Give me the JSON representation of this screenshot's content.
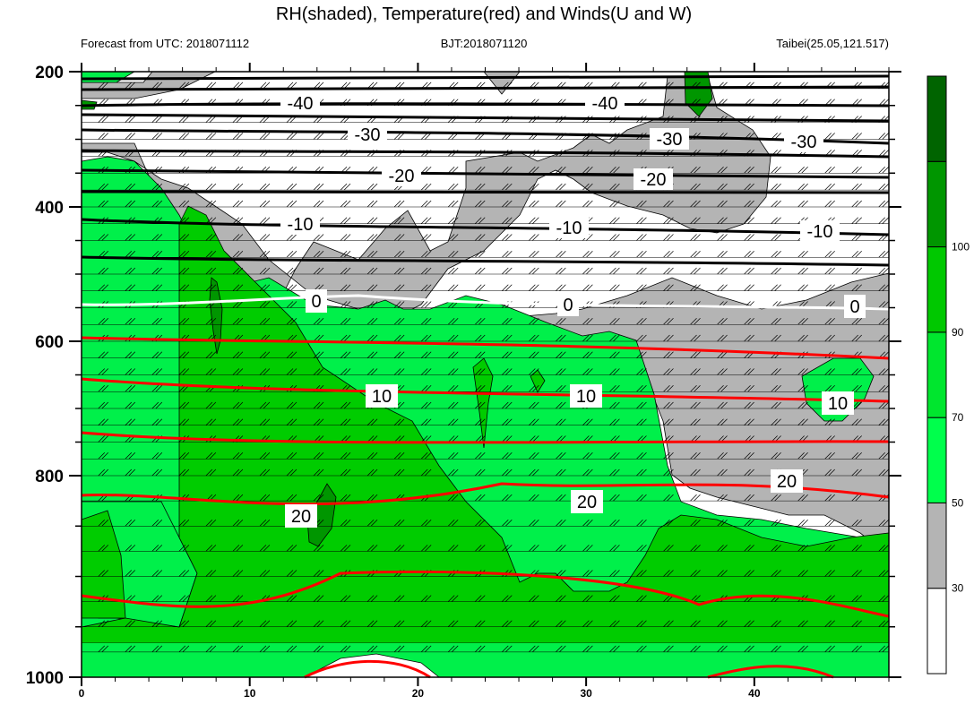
{
  "chart_data": {
    "type": "contour",
    "title": "RH(shaded), Temperature(red) and Winds(U and W)",
    "subtitle_left": "Forecast from UTC: 2018071112",
    "subtitle_center": "BJT:2018071120",
    "subtitle_right": "Taibei(25.05,121.517)",
    "x_ticks": [
      "0",
      "10",
      "20",
      "30",
      "40"
    ],
    "x_tick_values": [
      0,
      10,
      20,
      30,
      40
    ],
    "xlim": [
      0,
      48
    ],
    "y_ticks": [
      "200",
      "400",
      "600",
      "800",
      "1000"
    ],
    "y_tick_values": [
      200,
      400,
      600,
      800,
      1000
    ],
    "ylim": [
      200,
      1000
    ],
    "y_scale": "pressure (inverted, slightly compressed)",
    "colorbar": {
      "labels": [
        "30",
        "50",
        "70",
        "90",
        "100"
      ],
      "levels": [
        30,
        50,
        70,
        90,
        100
      ],
      "colors": [
        "#ffffff",
        "#b4b4b4",
        "#00ff4c",
        "#00e62e",
        "#00c800",
        "#009600",
        "#006400"
      ]
    },
    "temperature_contours": [
      {
        "label": "-40",
        "level": -40,
        "color": "#000000",
        "approx_pressure": 255
      },
      {
        "label": "-30",
        "level": -30,
        "color": "#000000",
        "approx_pressure": 300
      },
      {
        "label": "-20",
        "level": -20,
        "color": "#000000",
        "approx_pressure": 350
      },
      {
        "label": "-10",
        "level": -10,
        "color": "#000000",
        "approx_pressure": 425
      },
      {
        "label": "0",
        "level": 0,
        "color": "#ffffff",
        "approx_pressure": 545
      },
      {
        "label": "10",
        "level": 10,
        "color": "#ff0000",
        "approx_pressure": 680
      },
      {
        "label": "20",
        "level": 20,
        "color": "#ff0000",
        "approx_pressure": 860
      }
    ],
    "rh_regions": [
      {
        "category": "<30",
        "description": "upper levels, mostly white"
      },
      {
        "category": "30-50",
        "description": "grey patches aloft and lower right"
      },
      {
        "category": "50-90",
        "description": "greens through the lower troposphere"
      },
      {
        "category": ">90",
        "description": "small dark-green cores near x=8,15 and x=36 aloft"
      }
    ],
    "legend_placement": "colorbar right",
    "grid": false
  }
}
